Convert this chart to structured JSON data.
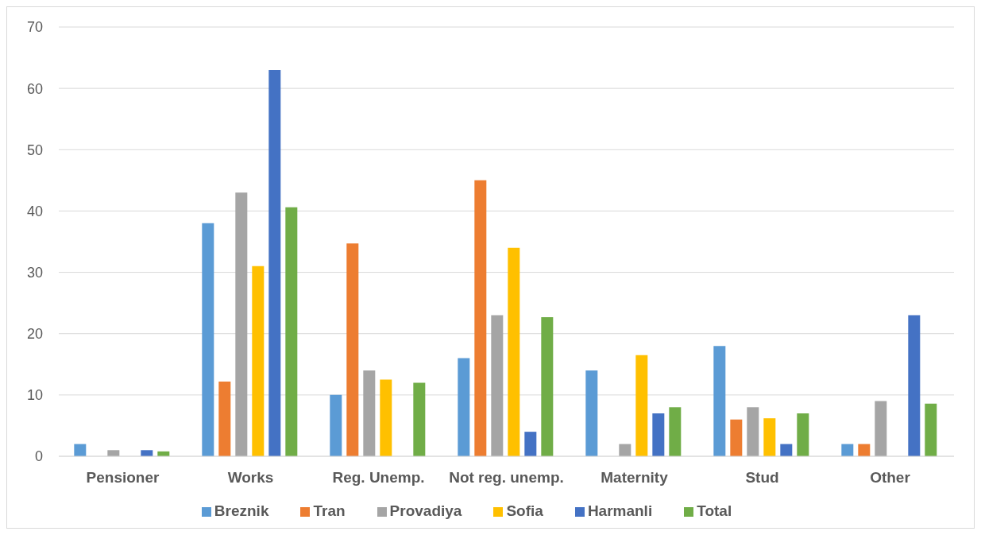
{
  "chart_data": {
    "type": "bar",
    "categories": [
      "Pensioner",
      "Works",
      "Reg. Unemp.",
      "Not reg. unemp.",
      "Maternity",
      "Stud",
      "Other"
    ],
    "series": [
      {
        "name": "Breznik",
        "color": "#5b9bd5",
        "values": [
          2,
          38,
          10,
          16,
          14,
          18,
          2
        ]
      },
      {
        "name": "Tran",
        "color": "#ed7d31",
        "values": [
          0,
          12.2,
          34.7,
          45,
          0,
          6,
          2
        ]
      },
      {
        "name": "Provadiya",
        "color": "#a5a5a5",
        "values": [
          1,
          43,
          14,
          23,
          2,
          8,
          9
        ]
      },
      {
        "name": "Sofia",
        "color": "#ffc000",
        "values": [
          0,
          31,
          12.5,
          34,
          16.5,
          6.2,
          0
        ]
      },
      {
        "name": "Harmanli",
        "color": "#4472c4",
        "values": [
          1,
          63,
          0,
          4,
          7,
          2,
          23
        ]
      },
      {
        "name": "Total",
        "color": "#70ad47",
        "values": [
          0.8,
          40.6,
          12,
          22.7,
          8,
          7,
          8.6
        ]
      }
    ],
    "ylim": [
      0,
      70
    ],
    "yticks": [
      0,
      10,
      20,
      30,
      40,
      50,
      60,
      70
    ],
    "grid": "y",
    "legend": "bottom"
  }
}
